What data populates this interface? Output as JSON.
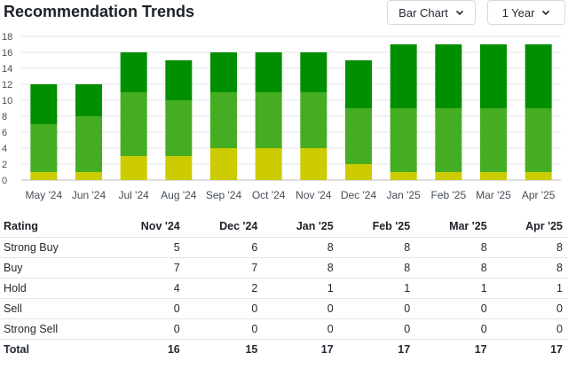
{
  "header": {
    "title": "Recommendation Trends",
    "chart_type_label": "Bar Chart",
    "range_label": "1 Year"
  },
  "colors": {
    "strong_buy": "#008f00",
    "buy": "#45ad22",
    "hold": "#cccc00",
    "sell": "#e0a000",
    "strong_sell": "#d60a22"
  },
  "chart_data": {
    "type": "bar",
    "stacked": true,
    "categories": [
      "May '24",
      "Jun '24",
      "Jul '24",
      "Aug '24",
      "Sep '24",
      "Oct '24",
      "Nov '24",
      "Dec '24",
      "Jan '25",
      "Feb '25",
      "Mar '25",
      "Apr '25"
    ],
    "series": [
      {
        "key": "hold",
        "values": [
          1,
          1,
          3,
          3,
          4,
          4,
          4,
          2,
          1,
          1,
          1,
          1
        ]
      },
      {
        "key": "buy",
        "values": [
          6,
          7,
          8,
          7,
          7,
          7,
          7,
          7,
          8,
          8,
          8,
          8
        ]
      },
      {
        "key": "strong_buy",
        "values": [
          5,
          4,
          5,
          5,
          5,
          5,
          5,
          6,
          8,
          8,
          8,
          8
        ]
      }
    ],
    "ylim": [
      0,
      18
    ],
    "yticks": [
      0,
      2,
      4,
      6,
      8,
      10,
      12,
      14,
      16,
      18
    ],
    "grid": true
  },
  "table": {
    "header_label": "Rating",
    "columns": [
      "Nov '24",
      "Dec '24",
      "Jan '25",
      "Feb '25",
      "Mar '25",
      "Apr '25"
    ],
    "rows": [
      {
        "label": "Strong Buy",
        "values": [
          "5",
          "6",
          "8",
          "8",
          "8",
          "8"
        ]
      },
      {
        "label": "Buy",
        "values": [
          "7",
          "7",
          "8",
          "8",
          "8",
          "8"
        ]
      },
      {
        "label": "Hold",
        "values": [
          "4",
          "2",
          "1",
          "1",
          "1",
          "1"
        ]
      },
      {
        "label": "Sell",
        "values": [
          "0",
          "0",
          "0",
          "0",
          "0",
          "0"
        ]
      },
      {
        "label": "Strong Sell",
        "values": [
          "0",
          "0",
          "0",
          "0",
          "0",
          "0"
        ]
      }
    ],
    "total": {
      "label": "Total",
      "values": [
        "16",
        "15",
        "17",
        "17",
        "17",
        "17"
      ]
    }
  }
}
